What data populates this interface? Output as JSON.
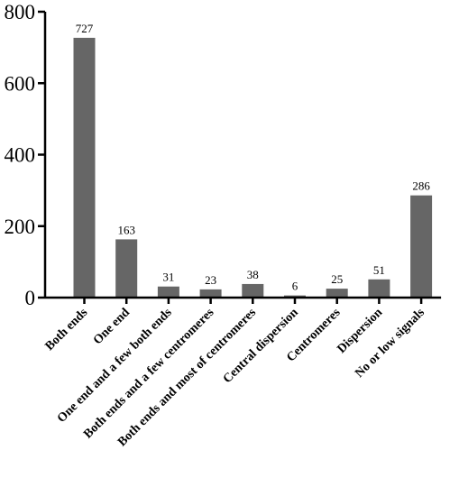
{
  "chart_data": {
    "type": "bar",
    "categories": [
      "Both ends",
      "One end",
      "One end and a few both ends",
      "Both ends and a few centromeres",
      "Both ends and most of centromeres",
      "Central dispersion",
      "Centromeres",
      "Dispersion",
      "No or low signals"
    ],
    "values": [
      727,
      163,
      31,
      23,
      38,
      6,
      25,
      51,
      286
    ],
    "data_labels": [
      "727",
      "163",
      "31",
      "23",
      "38",
      "6",
      "25",
      "51",
      "286"
    ],
    "ylim": [
      0,
      800
    ],
    "yticks": [
      0,
      200,
      400,
      600,
      800
    ],
    "ytick_labels": [
      "0",
      "200",
      "400",
      "600",
      "800"
    ],
    "bar_color": "#666666",
    "grid": false,
    "legend": "none"
  }
}
